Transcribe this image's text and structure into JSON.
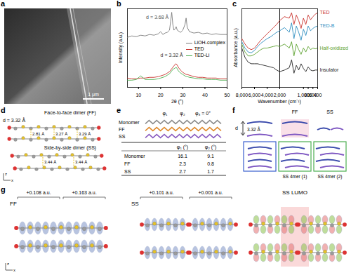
{
  "chart_data": [
    {
      "panel": "b",
      "type": "line",
      "x_label": "2θ (°)",
      "y_label": "Intensity (a.u.)",
      "x": [
        5,
        7,
        9,
        11,
        13,
        15,
        17,
        19,
        20,
        21,
        22,
        23,
        24,
        24.5,
        25,
        25.5,
        26,
        26.5,
        27,
        27.5,
        28,
        29,
        30,
        31,
        31.5,
        32,
        33,
        35,
        37,
        39,
        41,
        43,
        45,
        47,
        50
      ],
      "series": [
        {
          "name": "LiOH-complex",
          "color": "#7a7a7a",
          "values": [
            0.7,
            0.72,
            0.71,
            0.73,
            0.72,
            0.74,
            0.73,
            0.75,
            0.78,
            0.74,
            0.76,
            0.77,
            0.8,
            0.92,
            1.05,
            0.88,
            0.8,
            0.82,
            0.85,
            0.8,
            0.79,
            0.77,
            0.8,
            0.88,
            0.97,
            0.84,
            0.78,
            0.76,
            0.77,
            0.75,
            0.76,
            0.74,
            0.75,
            0.74,
            0.74
          ]
        },
        {
          "name": "TED",
          "color": "#c8312b",
          "values": [
            0.13,
            0.12,
            0.12,
            0.13,
            0.13,
            0.14,
            0.14,
            0.15,
            0.16,
            0.17,
            0.18,
            0.2,
            0.22,
            0.24,
            0.26,
            0.28,
            0.3,
            0.32,
            0.33,
            0.31,
            0.28,
            0.24,
            0.21,
            0.19,
            0.18,
            0.18,
            0.17,
            0.15,
            0.14,
            0.14,
            0.13,
            0.13,
            0.13,
            0.12,
            0.12
          ]
        },
        {
          "name": "TED-Li",
          "color": "#4caf50",
          "values": [
            0.1,
            0.1,
            0.11,
            0.16,
            0.11,
            0.11,
            0.11,
            0.12,
            0.13,
            0.14,
            0.15,
            0.17,
            0.19,
            0.21,
            0.23,
            0.25,
            0.26,
            0.27,
            0.28,
            0.26,
            0.23,
            0.2,
            0.18,
            0.16,
            0.15,
            0.15,
            0.14,
            0.13,
            0.12,
            0.12,
            0.11,
            0.11,
            0.11,
            0.1,
            0.1
          ]
        }
      ],
      "xlim": [
        5,
        50
      ],
      "xticks": [
        10,
        20,
        30,
        40,
        50
      ],
      "ylim": [
        0,
        1.1
      ],
      "yticks": [],
      "tick_labels": "x",
      "legend": "right",
      "annotations": [
        {
          "text": "d = 3.68 Å",
          "x": 18.5,
          "y": 0.98,
          "color": "#555555"
        },
        {
          "text": "d = 3.32 Å",
          "x": 25,
          "y": 0.45,
          "color": "#333333"
        }
      ]
    },
    {
      "panel": "c",
      "type": "line",
      "y_label": "Absorbance (a.u.)",
      "x": [
        8000,
        7500,
        7000,
        6500,
        6000,
        5500,
        5000,
        4500,
        4000,
        3500,
        3000,
        2500,
        2000
      ],
      "series": [
        {
          "color": "#c8312b",
          "values": [
            0.62,
            0.55,
            0.5,
            0.48,
            0.5,
            0.55,
            0.6,
            0.64,
            0.68,
            0.72,
            0.76,
            0.8,
            0.85
          ]
        },
        {
          "color": "#2b8cbe",
          "values": [
            0.58,
            0.5,
            0.45,
            0.44,
            0.47,
            0.52,
            0.56,
            0.59,
            0.62,
            0.64,
            0.67,
            0.7,
            0.72
          ]
        },
        {
          "color": "#5aa02c",
          "values": [
            0.55,
            0.45,
            0.4,
            0.4,
            0.42,
            0.45,
            0.48,
            0.5,
            0.5,
            0.51,
            0.52,
            0.53,
            0.52
          ]
        },
        {
          "color": "#222222",
          "values": [
            0.5,
            0.38,
            0.32,
            0.3,
            0.3,
            0.3,
            0.29,
            0.28,
            0.27,
            0.26,
            0.25,
            0.22,
            0.2
          ]
        }
      ],
      "xlim": [
        8000,
        2000
      ],
      "xticks": [
        {
          "value": 8000,
          "label": "8,000"
        },
        {
          "value": 6000,
          "label": "6,000"
        },
        {
          "value": 4000,
          "label": "4,000"
        },
        {
          "value": 2000,
          "label": "2,000"
        }
      ],
      "ylim": [
        0,
        1
      ],
      "yticks": [],
      "tick_labels": "x"
    },
    {
      "type": "line",
      "x_label": "Wavenumber (cm⁻¹)",
      "x": [
        2000,
        1800,
        1600,
        1500,
        1400,
        1300,
        1200,
        1100,
        1000,
        900,
        800,
        700,
        600,
        500,
        400
      ],
      "series": [
        {
          "name": "TED",
          "color": "#c8312b",
          "values": [
            0.85,
            0.9,
            0.88,
            0.95,
            0.8,
            0.92,
            0.85,
            0.75,
            0.88,
            0.8,
            0.92,
            0.86,
            0.9,
            0.93,
            0.95
          ]
        },
        {
          "name": "TED-B",
          "color": "#2b8cbe",
          "values": [
            0.72,
            0.76,
            0.7,
            0.82,
            0.62,
            0.78,
            0.7,
            0.6,
            0.74,
            0.66,
            0.78,
            0.72,
            0.75,
            0.77,
            0.78
          ]
        },
        {
          "name": "Half-oxidized",
          "color": "#5aa02c",
          "values": [
            0.52,
            0.55,
            0.5,
            0.58,
            0.4,
            0.55,
            0.48,
            0.42,
            0.5,
            0.45,
            0.52,
            0.48,
            0.5,
            0.49,
            0.5
          ]
        },
        {
          "name": "Insulator",
          "color": "#222222",
          "values": [
            0.2,
            0.22,
            0.25,
            0.35,
            0.18,
            0.28,
            0.22,
            0.3,
            0.24,
            0.2,
            0.26,
            0.22,
            0.21,
            0.22,
            0.22
          ]
        }
      ],
      "xlim": [
        2000,
        400
      ],
      "xticks": [
        {
          "value": 1000,
          "label": "1,000"
        },
        800,
        600,
        400
      ],
      "ylim": [
        0,
        1
      ],
      "yticks": [],
      "tick_labels": "x",
      "legend": "right"
    }
  ],
  "panels": {
    "a": {
      "label": "a",
      "scale_bar": "1 μm"
    },
    "d": {
      "label": "d",
      "ff_title": "Face-to-face dimer (FF)",
      "ff_spacing": "d = 3.32 Å",
      "ff_distances": [
        "2.81 Å",
        "3.27 Å",
        "3.29 Å"
      ],
      "ss_title": "Side-by-side dimer (SS)",
      "ss_distances": [
        "3.44 Å",
        "3.44 Å"
      ],
      "axes": [
        "z",
        "x"
      ]
    },
    "e": {
      "label": "e",
      "structures": [
        "Monomer",
        "FF",
        "SS"
      ],
      "angles": [
        "φ₁",
        "φ₂",
        "φ₃ = 0°"
      ],
      "table": {
        "header": [
          "φ₁ (°)",
          "φ₂ (°)"
        ],
        "rows": [
          [
            "Monomer",
            16.1,
            9.1
          ],
          [
            "FF",
            2.3,
            0.8
          ],
          [
            "SS",
            2.7,
            1.7
          ]
        ]
      }
    },
    "f": {
      "label": "f",
      "spacing_symbol": "d",
      "spacing": "3.32 Å",
      "columns": [
        "FF",
        "SS"
      ],
      "tetramers": [
        "SS 4mer (1)",
        "SS 4mer (2)"
      ]
    },
    "g": {
      "label": "g",
      "axes": [
        "z",
        "x"
      ],
      "panels": [
        {
          "title": "FF",
          "charges": [
            "+0.108 a.u.",
            "+0.163 a.u."
          ]
        },
        {
          "title": "SS",
          "charges": [
            "+0.101 a.u.",
            "+0.001 a.u."
          ]
        },
        {
          "title": "SS LUMO"
        }
      ]
    }
  }
}
